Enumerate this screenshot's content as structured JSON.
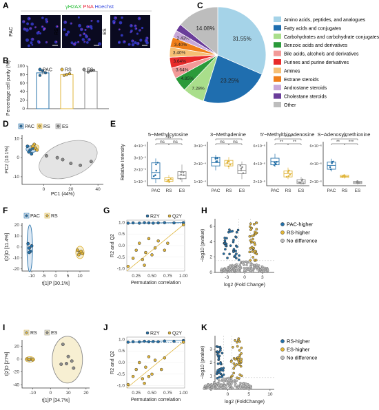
{
  "panel_letters": {
    "A": "A",
    "B": "B",
    "C": "C",
    "D": "D",
    "E": "E",
    "F": "F",
    "G": "G",
    "H": "H",
    "I": "I",
    "J": "J",
    "K": "K"
  },
  "colors": {
    "PAC": "#2470a8",
    "RS": "#e0b53a",
    "ES": "#8a8a8a",
    "green": "#22bb33",
    "red": "#e8283c",
    "blue": "#3b4fe0",
    "grid_bg": "#e8e8e8"
  },
  "panelA": {
    "stain": [
      "γH2AX",
      "PNA",
      "Hoechst"
    ],
    "rows": [
      {
        "label": "PAC"
      },
      {
        "label": "RS"
      },
      {
        "label": "ES"
      }
    ]
  },
  "chart_data": [
    {
      "id": "B",
      "type": "bar",
      "categories": [
        "PAC",
        "RS",
        "ES"
      ],
      "values": [
        84,
        80,
        88
      ],
      "errors": [
        4,
        2,
        2
      ],
      "points": [
        [
          78,
          89,
          84
        ],
        [
          78,
          80,
          82
        ],
        [
          86,
          89,
          90
        ]
      ],
      "ylabel": "Percentage cell purity (%)",
      "ylim": [
        0,
        100
      ],
      "yticks": [
        0,
        20,
        40,
        60,
        80,
        100
      ],
      "legend": [
        "PAC",
        "RS",
        "ES"
      ]
    },
    {
      "id": "C",
      "type": "pie",
      "slices": [
        {
          "label": "Amino acids, peptides, and analogues",
          "value": 31.55,
          "color": "#a5d3e8",
          "shown": "31.55%"
        },
        {
          "label": "Fatty acids and conjugates",
          "value": 23.25,
          "color": "#1f6eaf",
          "shown": "23.25%"
        },
        {
          "label": "Carbohydrates and carbohydrate conjugates",
          "value": 7.28,
          "color": "#a9de8b",
          "shown": "7.28%"
        },
        {
          "label": "Benzoic acids and derivatives",
          "value": 4.85,
          "color": "#2a9a3a",
          "shown": "4.85%"
        },
        {
          "label": "Bile acids, alcohols and derivatives",
          "value": 3.64,
          "color": "#f29a98",
          "shown": "3.64%"
        },
        {
          "label": "Purines and purine derivatives",
          "value": 3.64,
          "color": "#e82a2a",
          "shown": "3.64%"
        },
        {
          "label": "Amines",
          "value": 3.4,
          "color": "#f6bf74",
          "shown": "3.40%"
        },
        {
          "label": "Estrane steroids",
          "value": 3.4,
          "color": "#f07f1a",
          "shown": "3.40%"
        },
        {
          "label": "Androstane steroids",
          "value": 2.43,
          "color": "#c8a8d8",
          "shown": "2.43%"
        },
        {
          "label": "Cholestane steroids",
          "value": 2.43,
          "color": "#6a3d9a",
          "shown": ""
        },
        {
          "label": "Other",
          "value": 14.08,
          "color": "#bdbdbd",
          "shown": "14.08%"
        }
      ]
    },
    {
      "id": "D",
      "type": "scatter",
      "xlabel": "PC1 (44%)",
      "ylabel": "PC2 (10.1%)",
      "xticks": [
        0,
        20,
        40
      ],
      "yticks": [
        -10,
        0,
        10
      ],
      "legend": [
        "PAC",
        "RS",
        "ES"
      ],
      "series": [
        {
          "name": "PAC",
          "points": [
            [
              -12,
              6
            ],
            [
              -10,
              4
            ],
            [
              -8,
              5
            ],
            [
              -11,
              3
            ],
            [
              -9,
              2
            ]
          ]
        },
        {
          "name": "RS",
          "points": [
            [
              -7,
              7
            ],
            [
              -6,
              5
            ],
            [
              -8,
              6
            ],
            [
              -5,
              4
            ]
          ]
        },
        {
          "name": "ES",
          "points": [
            [
              2,
              1
            ],
            [
              10,
              0
            ],
            [
              14,
              -1
            ],
            [
              20,
              -3
            ],
            [
              27,
              -4
            ],
            [
              35,
              -2
            ]
          ]
        }
      ]
    },
    {
      "id": "E",
      "type": "box",
      "panels": [
        {
          "title": "5−Methylcytosine",
          "yticks": [
            "4×10⁻⁵",
            "3×10⁻⁵",
            "2×10⁻⁵",
            "1×10⁻⁵"
          ],
          "ymax": 5,
          "groups": [
            {
              "name": "PAC",
              "q": [
                0.3,
                0.8,
                1.5,
                2.6,
                3.1
              ]
            },
            {
              "name": "RS",
              "q": [
                0.3,
                0.5,
                0.7,
                0.9,
                1.2
              ]
            },
            {
              "name": "ES",
              "q": [
                0.4,
                0.8,
                1.2,
                1.6,
                2.4
              ]
            }
          ],
          "sig": [
            {
              "a": 0,
              "b": 1,
              "t": "ns"
            },
            {
              "a": 1,
              "b": 2,
              "t": "ns"
            },
            {
              "a": 0,
              "b": 2,
              "t": "ns"
            }
          ]
        },
        {
          "title": "3−Methadenine",
          "yticks": [
            "3×10⁻⁴",
            "2×10⁻⁴",
            "1×10⁻⁴"
          ],
          "ymax": 4,
          "groups": [
            {
              "name": "PAC",
              "q": [
                1.4,
                1.8,
                2.1,
                2.6,
                2.8
              ]
            },
            {
              "name": "RS",
              "q": [
                1.5,
                1.8,
                2.0,
                2.3,
                2.6
              ]
            },
            {
              "name": "ES",
              "q": [
                0.6,
                1.1,
                1.4,
                1.9,
                2.2
              ]
            }
          ],
          "sig": [
            {
              "a": 0,
              "b": 1,
              "t": "ns"
            },
            {
              "a": 1,
              "b": 2,
              "t": "ns"
            },
            {
              "a": 0,
              "b": 2,
              "t": "*"
            }
          ]
        },
        {
          "title": "5'−Methylthioadenosine",
          "yticks": [
            "6×10⁻⁶",
            "4×10⁻⁶",
            "2×10⁻⁶"
          ],
          "ymax": 8,
          "groups": [
            {
              "name": "PAC",
              "q": [
                3.4,
                3.8,
                4.4,
                5.0,
                5.8
              ]
            },
            {
              "name": "RS",
              "q": [
                1.2,
                1.6,
                2.2,
                2.7,
                3.3
              ]
            },
            {
              "name": "ES",
              "q": [
                0.2,
                0.4,
                0.7,
                1.1,
                1.6
              ]
            }
          ],
          "sig": [
            {
              "a": 0,
              "b": 1,
              "t": "**"
            },
            {
              "a": 1,
              "b": 2,
              "t": "**"
            },
            {
              "a": 0,
              "b": 2,
              "t": "****"
            }
          ]
        },
        {
          "title": "S−Adenosylmethionine",
          "yticks": [
            "6×10⁻⁶",
            "4×10⁻⁶",
            "2×10⁻⁶"
          ],
          "ymax": 8,
          "groups": [
            {
              "name": "PAC",
              "q": [
                2.6,
                3.0,
                3.7,
                4.3,
                4.9
              ]
            },
            {
              "name": "RS",
              "q": [
                1.3,
                1.5,
                1.7,
                1.9,
                2.1
              ]
            },
            {
              "name": "ES",
              "q": [
                0.2,
                0.4,
                0.6,
                0.8,
                1.0
              ]
            }
          ],
          "sig": [
            {
              "a": 0,
              "b": 1,
              "t": "**"
            },
            {
              "a": 1,
              "b": 2,
              "t": "***"
            },
            {
              "a": 0,
              "b": 2,
              "t": "***"
            }
          ]
        }
      ],
      "ylabel": "Relative Intensity",
      "xcats": [
        "PAC",
        "RS",
        "ES"
      ]
    },
    {
      "id": "F",
      "type": "scatter",
      "xlabel": "t[1]P [30.1%]",
      "ylabel": "t[2]O [11.4%]",
      "xticks": [
        -10,
        -5,
        0,
        5,
        10
      ],
      "yticks": [
        -20,
        -10,
        0,
        10,
        20
      ],
      "legend": [
        "PAC",
        "RS"
      ],
      "series": [
        {
          "name": "PAC",
          "points": [
            [
              -11,
              -1
            ],
            [
              -11.5,
              3
            ],
            [
              -10.5,
              -4
            ],
            [
              -11,
              -5
            ],
            [
              -10,
              1
            ]
          ]
        },
        {
          "name": "RS",
          "points": [
            [
              9,
              -3
            ],
            [
              10,
              -5
            ],
            [
              9.5,
              -7
            ],
            [
              10.5,
              -4
            ],
            [
              11,
              -6
            ]
          ]
        }
      ]
    },
    {
      "id": "G",
      "type": "scatter",
      "xlabel": "Permutation correlation",
      "ylabel": "R2 and Q2",
      "xticks": [
        0.25,
        0.5,
        0.75,
        1.0
      ],
      "yticks": [
        -1.0,
        -0.5,
        0.0,
        0.5,
        1.0
      ],
      "legend": [
        "R2Y",
        "Q2Y"
      ],
      "series": [
        {
          "name": "R2Y",
          "points": [
            [
              0.12,
              0.97
            ],
            [
              0.2,
              0.98
            ],
            [
              0.3,
              0.97
            ],
            [
              0.38,
              0.99
            ],
            [
              0.45,
              0.98
            ],
            [
              0.52,
              0.97
            ],
            [
              0.6,
              0.98
            ],
            [
              0.7,
              0.99
            ],
            [
              0.85,
              0.98
            ],
            [
              1.0,
              0.99
            ]
          ]
        },
        {
          "name": "Q2Y",
          "points": [
            [
              0.12,
              -0.9
            ],
            [
              0.2,
              -0.55
            ],
            [
              0.25,
              -0.2
            ],
            [
              0.3,
              0.1
            ],
            [
              0.35,
              -0.6
            ],
            [
              0.4,
              -0.3
            ],
            [
              0.45,
              0.3
            ],
            [
              0.5,
              -0.4
            ],
            [
              0.55,
              -0.1
            ],
            [
              0.6,
              0.2
            ],
            [
              0.7,
              -0.2
            ],
            [
              0.75,
              0.1
            ],
            [
              0.38,
              -0.85
            ],
            [
              1.0,
              0.9
            ]
          ]
        }
      ]
    },
    {
      "id": "H",
      "type": "scatter",
      "xlabel": "log2 (Fold Change)",
      "ylabel": "−log10 (pvalue)",
      "xticks": [
        -3,
        0,
        3
      ],
      "yticks": [
        0,
        2,
        4,
        6
      ],
      "legend": [
        "PAC-higher",
        "RS-higher",
        "No difference"
      ]
    },
    {
      "id": "I",
      "type": "scatter",
      "xlabel": "t[1]P [34.7%]",
      "ylabel": "t[2]O [27%]",
      "xticks": [
        -10,
        0,
        10,
        20
      ],
      "yticks": [
        -40,
        -20,
        0,
        20
      ],
      "legend": [
        "RS",
        "ES"
      ],
      "series": [
        {
          "name": "RS",
          "points": [
            [
              -13,
              0
            ],
            [
              -12,
              -1
            ],
            [
              -11,
              0
            ],
            [
              -10,
              -1
            ],
            [
              -12,
              -0.5
            ]
          ]
        },
        {
          "name": "ES",
          "points": [
            [
              7,
              23
            ],
            [
              9,
              -7
            ],
            [
              10,
              4
            ],
            [
              12,
              -3
            ],
            [
              13,
              -14
            ],
            [
              6,
              -8
            ]
          ]
        }
      ]
    },
    {
      "id": "J",
      "type": "scatter",
      "xlabel": "Permutation correlation",
      "ylabel": "R2 and Q2",
      "xticks": [
        0.25,
        0.5,
        0.75,
        1.0
      ],
      "yticks": [
        -1.0,
        -0.5,
        0.0,
        0.5,
        1.0
      ],
      "legend": [
        "R2Y",
        "Q2Y"
      ],
      "series": [
        {
          "name": "R2Y",
          "points": [
            [
              0.12,
              0.88
            ],
            [
              0.2,
              0.9
            ],
            [
              0.3,
              0.89
            ],
            [
              0.38,
              0.92
            ],
            [
              0.45,
              0.9
            ],
            [
              0.52,
              0.91
            ],
            [
              0.6,
              0.9
            ],
            [
              0.7,
              0.93
            ],
            [
              0.85,
              0.92
            ],
            [
              1.0,
              0.95
            ]
          ]
        },
        {
          "name": "Q2Y",
          "points": [
            [
              0.12,
              -0.95
            ],
            [
              0.2,
              -0.6
            ],
            [
              0.25,
              -0.3
            ],
            [
              0.3,
              0.0
            ],
            [
              0.35,
              -0.7
            ],
            [
              0.4,
              -0.2
            ],
            [
              0.45,
              0.25
            ],
            [
              0.5,
              -0.5
            ],
            [
              0.55,
              0.1
            ],
            [
              0.65,
              -0.3
            ],
            [
              0.7,
              0.2
            ],
            [
              0.38,
              -0.9
            ],
            [
              0.45,
              -0.6
            ],
            [
              1.0,
              0.88
            ]
          ]
        }
      ]
    },
    {
      "id": "K",
      "type": "scatter",
      "xlabel": "log2 (FoldChange)",
      "ylabel": "−log10 (pvalue)",
      "xticks": [
        0,
        5,
        10
      ],
      "yticks": [
        0,
        1,
        2,
        3
      ],
      "legend": [
        "RS-higher",
        "ES-higher",
        "No difference"
      ]
    }
  ]
}
